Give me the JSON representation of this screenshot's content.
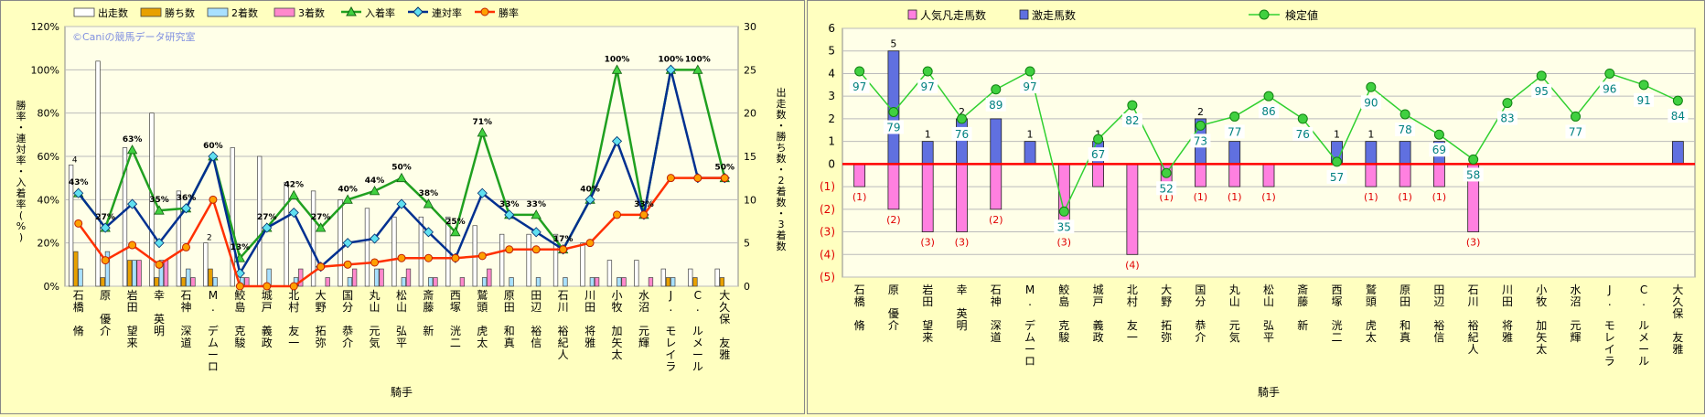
{
  "chart_data": [
    {
      "type": "bar",
      "title": "",
      "watermark": "©Caniの競馬データ研究室",
      "xlabel": "騎手",
      "ylabel_left": "勝率・連対率・入着率(%)",
      "ylabel_right": "出走数・勝ち数・2着数・3着数",
      "ylim_left": [
        0,
        120
      ],
      "ylim_right": [
        0,
        30
      ],
      "yticks_left": [
        "0%",
        "20%",
        "40%",
        "60%",
        "80%",
        "100%",
        "120%"
      ],
      "yticks_right": [
        "0",
        "5",
        "10",
        "15",
        "20",
        "25",
        "30"
      ],
      "grid": true,
      "legend_position": "top",
      "categories": [
        "石橋 脩",
        "原 優介",
        "岩田 望来",
        "幸 英明",
        "石神 深道",
        "M. デムーロ",
        "鮫島 克駿",
        "城戸 義政",
        "北村 友一",
        "大野 拓弥",
        "国分 恭介",
        "丸山 元気",
        "松山 弘平",
        "斎藤 新",
        "西塚 洸二",
        "鷲頭 虎太",
        "原田 和真",
        "田辺 裕信",
        "石川 裕紀人",
        "川田 将雅",
        "小牧 加矢太",
        "水沼 元輝",
        "J. モレイラ",
        "C. ルメール",
        "大久保 友雅"
      ],
      "series": [
        {
          "name": "出走数",
          "kind": "bar",
          "axis": "right",
          "color": "#ffffff",
          "values": [
            14,
            26,
            16,
            20,
            11,
            5,
            16,
            15,
            12,
            11,
            10,
            9,
            8,
            8,
            8,
            7,
            6,
            6,
            6,
            5,
            3,
            3,
            2,
            2,
            2
          ]
        },
        {
          "name": "勝ち数",
          "kind": "bar",
          "axis": "right",
          "color": "#e8a000",
          "values": [
            4,
            1,
            3,
            1,
            1,
            2,
            0,
            0,
            0,
            0,
            0,
            0,
            0,
            0,
            0,
            0,
            0,
            0,
            0,
            0,
            0,
            0,
            1,
            1,
            1
          ]
        },
        {
          "name": "2着数",
          "kind": "bar",
          "axis": "right",
          "color": "#a8e0ff",
          "values": [
            2,
            4,
            3,
            3,
            2,
            1,
            1,
            2,
            1,
            0,
            1,
            2,
            1,
            1,
            0,
            1,
            1,
            1,
            1,
            1,
            1,
            0,
            1,
            0,
            0
          ]
        },
        {
          "name": "3着数",
          "kind": "bar",
          "axis": "right",
          "color": "#ff88cc",
          "values": [
            0,
            0,
            3,
            3,
            1,
            0,
            1,
            0,
            2,
            1,
            2,
            2,
            2,
            1,
            1,
            2,
            0,
            0,
            0,
            1,
            1,
            1,
            0,
            0,
            0
          ]
        },
        {
          "name": "入着率",
          "kind": "line",
          "axis": "left",
          "color": "#20a020",
          "marker": "triangle",
          "values": [
            43,
            27,
            63,
            35,
            36,
            60,
            13,
            27,
            42,
            27,
            40,
            44,
            50,
            38,
            25,
            71,
            33,
            33,
            17,
            40,
            100,
            33,
            100,
            100,
            50
          ]
        },
        {
          "name": "連対率",
          "kind": "line",
          "axis": "left",
          "color": "#003090",
          "marker": "diamond",
          "values": [
            43,
            27,
            38,
            20,
            36,
            60,
            6,
            27,
            34,
            9,
            20,
            22,
            38,
            25,
            13,
            43,
            33,
            25,
            17,
            40,
            67,
            33,
            100,
            50,
            50
          ]
        },
        {
          "name": "勝率",
          "kind": "line",
          "axis": "left",
          "color": "#ff3000",
          "marker": "circle",
          "values": [
            29,
            12,
            19,
            10,
            18,
            40,
            0,
            0,
            0,
            9,
            10,
            11,
            13,
            13,
            13,
            14,
            17,
            17,
            17,
            20,
            33,
            33,
            50,
            50,
            50
          ]
        }
      ],
      "annotation_series": "入着率",
      "annotations": [
        "43%",
        "27%",
        "63%",
        "35%",
        "36%",
        "60%",
        "13%",
        "27%",
        "42%",
        "27%",
        "40%",
        "44%",
        "50%",
        "38%",
        "25%",
        "71%",
        "33%",
        "33%",
        "17%",
        "40%",
        "100%",
        "33%",
        "100%",
        "100%",
        "50%"
      ],
      "bar_top_labels": [
        "4",
        "",
        "",
        "",
        "",
        "2",
        "",
        "",
        "",
        "",
        "",
        "",
        "",
        "",
        "",
        "",
        "",
        "",
        "",
        "",
        "",
        "",
        "",
        "",
        ""
      ]
    },
    {
      "type": "bar",
      "title": "",
      "xlabel": "騎手",
      "ylim": [
        -5,
        6
      ],
      "yticks": [
        "6",
        "5",
        "4",
        "3",
        "2",
        "1",
        "0",
        "(1)",
        "(2)",
        "(3)",
        "(4)",
        "(5)"
      ],
      "grid": true,
      "legend_position": "top",
      "categories": [
        "石橋 脩",
        "原 優介",
        "岩田 望来",
        "幸 英明",
        "石神 深道",
        "M. デムーロ",
        "鮫島 克駿",
        "城戸 義政",
        "北村 友一",
        "大野 拓弥",
        "国分 恭介",
        "丸山 元気",
        "松山 弘平",
        "斎藤 新",
        "西塚 洸二",
        "鷲頭 虎太",
        "原田 和真",
        "田辺 裕信",
        "石川 裕紀人",
        "川田 将雅",
        "小牧 加矢太",
        "水沼 元輝",
        "J. モレイラ",
        "C. ルメール",
        "大久保 友雅"
      ],
      "series": [
        {
          "name": "人気凡走馬数",
          "kind": "bar",
          "color": "#ff80e0",
          "values": [
            -1,
            -2,
            -3,
            -3,
            -2,
            0,
            -3,
            -1,
            -4,
            -1,
            -1,
            -1,
            -1,
            0,
            0,
            -1,
            -1,
            -1,
            -3,
            0,
            0,
            0,
            0,
            0,
            0
          ]
        },
        {
          "name": "激走馬数",
          "kind": "bar",
          "color": "#6070e0",
          "values": [
            0,
            5,
            1,
            2,
            2,
            1,
            0,
            1,
            0,
            0,
            2,
            1,
            0,
            0,
            1,
            1,
            1,
            1,
            0,
            0,
            0,
            0,
            0,
            0,
            1
          ]
        },
        {
          "name": "検定値",
          "kind": "line",
          "color": "#20c020",
          "marker": "circle",
          "values": [
            97,
            79,
            97,
            76,
            89,
            97,
            35,
            67,
            82,
            52,
            73,
            77,
            86,
            76,
            57,
            90,
            78,
            69,
            58,
            83,
            95,
            77,
            96,
            91,
            84
          ]
        }
      ],
      "positive_labels": [
        "",
        "5",
        "1",
        "2",
        "",
        "1",
        "",
        "1",
        "",
        "",
        "2",
        "",
        "",
        "",
        "1",
        "1",
        "",
        "1",
        "",
        "",
        "",
        "",
        "",
        "",
        ""
      ],
      "negative_labels": [
        "(1)",
        "(2)",
        "(3)",
        "(3)",
        "(2)",
        "",
        "(3)",
        "",
        "(4)",
        "(1)",
        "(1)",
        "(1)",
        "(1)",
        "",
        "",
        "(1)",
        "(1)",
        "(1)",
        "(3)",
        "",
        "",
        "",
        "",
        "",
        ""
      ]
    }
  ]
}
